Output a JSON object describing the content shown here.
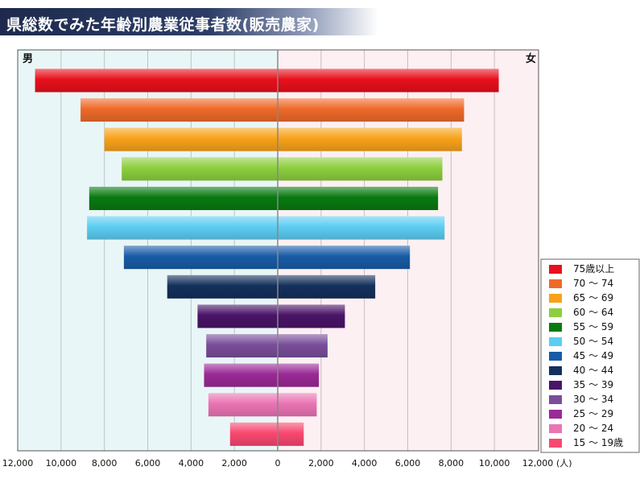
{
  "title": "県総数でみた年齢別農業従事者数(販売農家)",
  "chart_data": {
    "type": "bar",
    "orientation": "horizontal-population-pyramid",
    "left_label": "男",
    "right_label": "女",
    "x_ticks_left": [
      "12,000",
      "10,000",
      "8,000",
      "6,000",
      "4,000",
      "2,000",
      "0"
    ],
    "x_ticks_right": [
      "2,000",
      "4,000",
      "6,000",
      "8,000",
      "10,000",
      "12,000"
    ],
    "x_unit": "(人)",
    "xlim": [
      0,
      12000
    ],
    "grid": true,
    "legend_position": "right",
    "categories": [
      "75歳以上",
      "70 ～ 74",
      "65 ～ 69",
      "60 ～ 64",
      "55 ～ 59",
      "50 ～ 54",
      "45 ～ 49",
      "40 ～ 44",
      "35 ～ 39",
      "30 ～ 34",
      "25 ～ 29",
      "20 ～ 24",
      "15 ～ 19歳"
    ],
    "colors": [
      "#e8101c",
      "#ee6a2a",
      "#f8a21a",
      "#8ccf3e",
      "#087a10",
      "#5ccdf2",
      "#185ca6",
      "#14305c",
      "#4a1468",
      "#7a4e9a",
      "#9a2a96",
      "#ea74b4",
      "#f84870"
    ],
    "series": [
      {
        "name": "男",
        "values": [
          11200,
          9100,
          8000,
          7200,
          8700,
          8800,
          7100,
          5100,
          3700,
          3300,
          3400,
          3200,
          2200
        ]
      },
      {
        "name": "女",
        "values": [
          10200,
          8600,
          8500,
          7600,
          7400,
          7700,
          6100,
          4500,
          3100,
          2300,
          1900,
          1800,
          1200
        ]
      }
    ]
  }
}
